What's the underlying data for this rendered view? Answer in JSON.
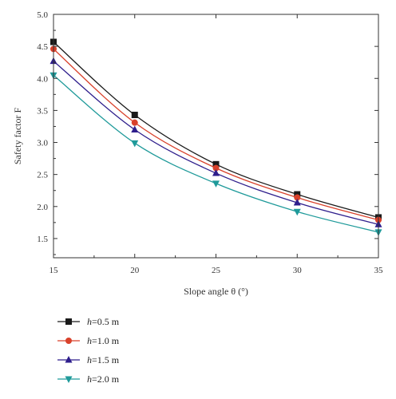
{
  "chart_data": {
    "type": "line",
    "title": "",
    "xlabel": "Slope angle θ (°)",
    "ylabel": "Safety factor F",
    "xlim": [
      15,
      35
    ],
    "ylim": [
      1.2,
      5.0
    ],
    "x_ticks": [
      15,
      20,
      25,
      30,
      35
    ],
    "y_ticks": [
      1.5,
      2.0,
      2.5,
      3.0,
      3.5,
      4.0,
      4.5,
      5.0
    ],
    "x": [
      15,
      20,
      25,
      30,
      35
    ],
    "grid": false,
    "legend_placement": "bottom-left, below plot",
    "series": [
      {
        "name": "h=0.5 m",
        "marker": "square",
        "color": "#1a1a1a",
        "values": [
          4.57,
          3.43,
          2.66,
          2.19,
          1.83
        ]
      },
      {
        "name": "h=1.0 m",
        "marker": "circle",
        "color": "#d9412b",
        "values": [
          4.46,
          3.31,
          2.6,
          2.14,
          1.79
        ]
      },
      {
        "name": "h=1.5 m",
        "marker": "triangle-up",
        "color": "#2e1e8c",
        "values": [
          4.27,
          3.2,
          2.52,
          2.06,
          1.72
        ]
      },
      {
        "name": "h=2.0 m",
        "marker": "triangle-down",
        "color": "#1f9a9a",
        "values": [
          4.05,
          2.99,
          2.36,
          1.92,
          1.6
        ]
      }
    ]
  }
}
